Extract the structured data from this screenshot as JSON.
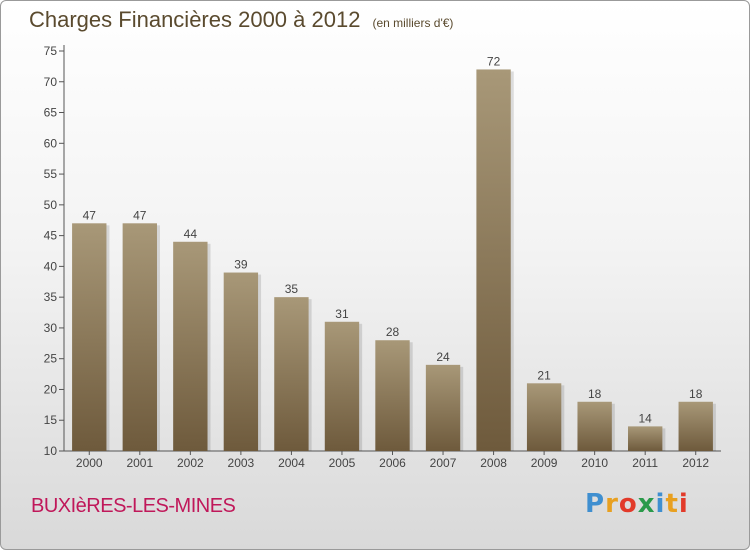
{
  "header": {
    "title": "Charges Financières 2000 à 2012",
    "subtitle": "(en milliers d'€)"
  },
  "footer": {
    "commune": "BUXIèRES-LES-MINES",
    "brand_letters": [
      "P",
      "r",
      "o",
      "x",
      "i",
      "t",
      "i"
    ],
    "brand_colors": [
      "#3f8fd0",
      "#e8a020",
      "#e23a2a",
      "#2a9a4a",
      "#3f8fd0",
      "#e8a020",
      "#e23a2a"
    ]
  },
  "chart_data": {
    "type": "bar",
    "categories": [
      "2000",
      "2001",
      "2002",
      "2003",
      "2004",
      "2005",
      "2006",
      "2007",
      "2008",
      "2009",
      "2010",
      "2011",
      "2012"
    ],
    "values": [
      47,
      47,
      44,
      39,
      35,
      31,
      28,
      24,
      72,
      21,
      18,
      14,
      18
    ],
    "data_labels": [
      "47",
      "47",
      "44",
      "39",
      "35",
      "31",
      "28",
      "24",
      "72",
      "21",
      "18",
      "14",
      "18"
    ],
    "title": "Charges Financières 2000 à 2012",
    "subtitle": "(en milliers d'€)",
    "ylim": [
      10,
      75
    ],
    "yticks": [
      10,
      15,
      20,
      25,
      30,
      35,
      40,
      45,
      50,
      55,
      60,
      65,
      70,
      75
    ],
    "grid": false,
    "colors": {
      "bar_top": "#a89878",
      "bar_bottom": "#6e5a3c",
      "axis": "#555555",
      "text": "#444444"
    }
  }
}
